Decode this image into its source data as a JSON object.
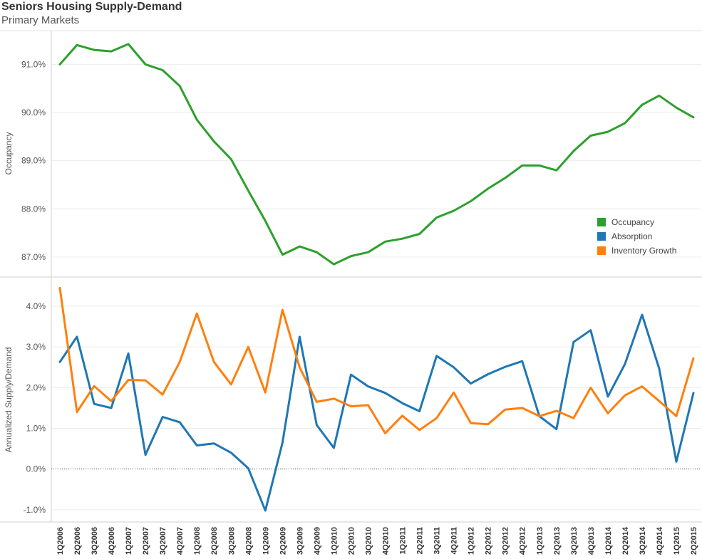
{
  "title": "Seniors Housing Supply-Demand",
  "subtitle": "Primary Markets",
  "chart_data": [
    {
      "type": "line",
      "ylabel": "Occupancy",
      "ylim": [
        86.6,
        91.7
      ],
      "yticks": [
        "87.0%",
        "88.0%",
        "89.0%",
        "90.0%",
        "91.0%"
      ],
      "ytick_values": [
        87,
        88,
        89,
        90,
        91
      ],
      "grid": true,
      "x": [
        "1Q2006",
        "2Q2006",
        "3Q2006",
        "4Q2006",
        "1Q2007",
        "2Q2007",
        "3Q2007",
        "4Q2007",
        "1Q2008",
        "2Q2008",
        "3Q2008",
        "4Q2008",
        "1Q2009",
        "2Q2009",
        "3Q2009",
        "4Q2009",
        "1Q2010",
        "2Q2010",
        "3Q2010",
        "4Q2010",
        "1Q2011",
        "2Q2011",
        "3Q2011",
        "4Q2011",
        "1Q2012",
        "2Q2012",
        "3Q2012",
        "4Q2012",
        "1Q2013",
        "2Q2013",
        "3Q2013",
        "4Q2013",
        "1Q2014",
        "2Q2014",
        "3Q2014",
        "4Q2014",
        "1Q2015",
        "2Q2015"
      ],
      "series": [
        {
          "name": "Occupancy",
          "color": "#2ca02c",
          "values": [
            91.0,
            91.4,
            91.3,
            91.27,
            91.42,
            91.0,
            90.88,
            90.55,
            89.85,
            89.4,
            89.03,
            88.38,
            87.75,
            87.05,
            87.22,
            87.1,
            86.85,
            87.02,
            87.1,
            87.32,
            87.38,
            87.48,
            87.82,
            87.96,
            88.16,
            88.42,
            88.64,
            88.9,
            88.9,
            88.8,
            89.2,
            89.52,
            89.6,
            89.78,
            90.16,
            90.35,
            90.1,
            89.9
          ]
        }
      ]
    },
    {
      "type": "line",
      "ylabel": "Annualized Supply/Demand",
      "ylim": [
        -1.3,
        4.7
      ],
      "yticks": [
        "-1.0%",
        "0.0%",
        "1.0%",
        "2.0%",
        "3.0%",
        "4.0%"
      ],
      "ytick_values": [
        -1,
        0,
        1,
        2,
        3,
        4
      ],
      "grid": true,
      "zero_line": true,
      "x": [
        "1Q2006",
        "2Q2006",
        "3Q2006",
        "4Q2006",
        "1Q2007",
        "2Q2007",
        "3Q2007",
        "4Q2007",
        "1Q2008",
        "2Q2008",
        "3Q2008",
        "4Q2008",
        "1Q2009",
        "2Q2009",
        "3Q2009",
        "4Q2009",
        "1Q2010",
        "2Q2010",
        "3Q2010",
        "4Q2010",
        "1Q2011",
        "2Q2011",
        "3Q2011",
        "4Q2011",
        "1Q2012",
        "2Q2012",
        "3Q2012",
        "4Q2012",
        "1Q2013",
        "2Q2013",
        "3Q2013",
        "4Q2013",
        "1Q2014",
        "2Q2014",
        "3Q2014",
        "4Q2014",
        "1Q2015",
        "2Q2015"
      ],
      "series": [
        {
          "name": "Absorption",
          "color": "#1f77b4",
          "values": [
            2.63,
            3.25,
            1.6,
            1.5,
            2.84,
            0.35,
            1.28,
            1.15,
            0.58,
            0.63,
            0.4,
            0.02,
            -1.02,
            0.65,
            3.25,
            1.08,
            0.52,
            2.32,
            2.03,
            1.87,
            1.62,
            1.42,
            2.78,
            2.5,
            2.1,
            2.33,
            2.51,
            2.65,
            1.3,
            0.98,
            3.12,
            3.41,
            1.78,
            2.58,
            3.79,
            2.47,
            0.18,
            1.87
          ]
        },
        {
          "name": "Inventory Growth",
          "color": "#ff7f0e",
          "values": [
            4.45,
            1.4,
            2.04,
            1.67,
            2.19,
            2.18,
            1.83,
            2.63,
            3.82,
            2.63,
            2.08,
            3.0,
            1.88,
            3.91,
            2.5,
            1.65,
            1.73,
            1.54,
            1.57,
            0.88,
            1.31,
            0.96,
            1.25,
            1.88,
            1.13,
            1.1,
            1.46,
            1.5,
            1.3,
            1.43,
            1.25,
            2.0,
            1.37,
            1.81,
            2.03,
            1.67,
            1.3,
            2.72
          ]
        }
      ]
    }
  ],
  "legend": {
    "placement": "right",
    "items": [
      {
        "label": "Occupancy",
        "color": "#2ca02c"
      },
      {
        "label": "Absorption",
        "color": "#1f77b4"
      },
      {
        "label": "Inventory Growth",
        "color": "#ff7f0e"
      }
    ]
  }
}
